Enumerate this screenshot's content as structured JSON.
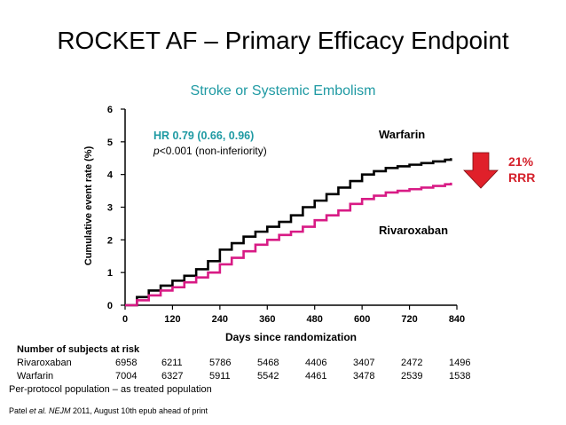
{
  "slide_title": "ROCKET AF – Primary Efficacy Endpoint",
  "annotation": {
    "hr": "HR 0.79 (0.66, 0.96)",
    "p_prefix": "p",
    "p_rest": "<0.001 (non-inferiority)",
    "rrr_pct": "21%",
    "rrr_label": "RRR"
  },
  "colors": {
    "warfarin": "#000000",
    "rivaroxaban": "#d81b85",
    "accent": "#1f9aa3",
    "arrow": "#e0202a"
  },
  "chart_data": {
    "type": "line",
    "title": "Stroke or Systemic Embolism",
    "xlabel": "Days since randomization",
    "ylabel": "Cumulative event rate (%)",
    "xlim": [
      0,
      840
    ],
    "ylim": [
      0,
      6
    ],
    "x_ticks": [
      "0",
      "120",
      "240",
      "360",
      "480",
      "600",
      "720",
      "840"
    ],
    "y_ticks": [
      "0",
      "1",
      "2",
      "3",
      "4",
      "5",
      "6"
    ],
    "series": [
      {
        "name": "Warfarin",
        "x": [
          0,
          30,
          60,
          90,
          120,
          150,
          180,
          210,
          240,
          270,
          300,
          330,
          360,
          390,
          420,
          450,
          480,
          510,
          540,
          570,
          600,
          630,
          660,
          690,
          720,
          750,
          780,
          810,
          825
        ],
        "y": [
          0,
          0.25,
          0.45,
          0.6,
          0.75,
          0.9,
          1.1,
          1.35,
          1.7,
          1.9,
          2.1,
          2.25,
          2.4,
          2.55,
          2.75,
          3.0,
          3.2,
          3.4,
          3.6,
          3.8,
          4.0,
          4.1,
          4.2,
          4.25,
          4.3,
          4.35,
          4.4,
          4.45,
          4.5
        ]
      },
      {
        "name": "Rivaroxaban",
        "x": [
          0,
          30,
          60,
          90,
          120,
          150,
          180,
          210,
          240,
          270,
          300,
          330,
          360,
          390,
          420,
          450,
          480,
          510,
          540,
          570,
          600,
          630,
          660,
          690,
          720,
          750,
          780,
          810,
          825
        ],
        "y": [
          0,
          0.15,
          0.3,
          0.45,
          0.55,
          0.7,
          0.85,
          1.0,
          1.25,
          1.45,
          1.65,
          1.85,
          2.0,
          2.15,
          2.25,
          2.4,
          2.6,
          2.75,
          2.9,
          3.1,
          3.25,
          3.35,
          3.45,
          3.5,
          3.55,
          3.6,
          3.65,
          3.7,
          3.75
        ]
      }
    ]
  },
  "risk_table": {
    "title": "Number of subjects at risk",
    "rows": [
      {
        "label": "Rivaroxaban",
        "values": [
          "6958",
          "6211",
          "5786",
          "5468",
          "4406",
          "3407",
          "2472",
          "1496"
        ]
      },
      {
        "label": "Warfarin",
        "values": [
          "7004",
          "6327",
          "5911",
          "5542",
          "4461",
          "3478",
          "2539",
          "1538"
        ]
      }
    ]
  },
  "footnote": "Per-protocol population – as treated population",
  "citation": {
    "author": "Patel ",
    "etal": "et al. ",
    "journal": "NEJM",
    "rest": " 2011, August 10th epub ahead of print"
  }
}
